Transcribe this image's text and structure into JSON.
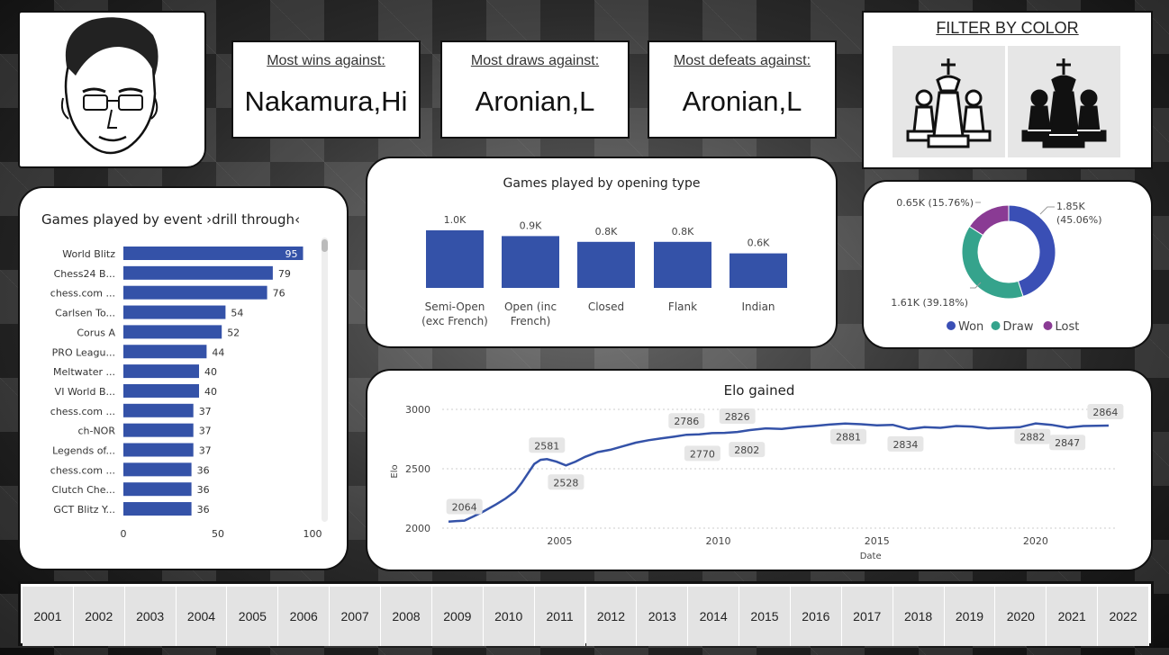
{
  "kpis": [
    {
      "label": "Most wins against:",
      "value": "Nakamura,Hi"
    },
    {
      "label": "Most draws against:",
      "value": "Aronian,L"
    },
    {
      "label": "Most defeats against:",
      "value": "Aronian,L"
    }
  ],
  "filter": {
    "title": "FILTER BY COLOR"
  },
  "event_chart": {
    "title": "Games played by event ›drill through‹"
  },
  "opening_chart": {
    "title": "Games played by opening type"
  },
  "elo_chart": {
    "title": "Elo gained"
  },
  "donut_legend": [
    {
      "label": "Won",
      "color": "#3a4fb5"
    },
    {
      "label": "Draw",
      "color": "#35a38c"
    },
    {
      "label": "Lost",
      "color": "#8a3b94"
    }
  ],
  "years": [
    "2001",
    "2002",
    "2003",
    "2004",
    "2005",
    "2006",
    "2007",
    "2008",
    "2009",
    "2010",
    "2011",
    "2012",
    "2013",
    "2014",
    "2015",
    "2016",
    "2017",
    "2018",
    "2019",
    "2020",
    "2021",
    "2022"
  ],
  "chart_data": [
    {
      "type": "bar",
      "orientation": "horizontal",
      "title": "Games played by event ›drill through‹",
      "categories": [
        "World Blitz",
        "Chess24 B...",
        "chess.com ...",
        "Carlsen To...",
        "Corus A",
        "PRO Leagu...",
        "Meltwater ...",
        "VI World B...",
        "chess.com ...",
        "ch-NOR",
        "Legends of...",
        "chess.com ...",
        "Clutch Che...",
        "GCT Blitz Y..."
      ],
      "values": [
        95,
        79,
        76,
        54,
        52,
        44,
        40,
        40,
        37,
        37,
        37,
        36,
        36,
        36
      ],
      "xlim": [
        0,
        100
      ],
      "xticks": [
        "0",
        "50",
        "100"
      ],
      "color": "#3452a8"
    },
    {
      "type": "bar",
      "title": "Games played by opening type",
      "categories": [
        [
          "Semi-Open",
          "(exc French)"
        ],
        [
          "Open (inc",
          "French)"
        ],
        [
          "Closed"
        ],
        [
          "Flank"
        ],
        [
          "Indian"
        ]
      ],
      "values": [
        1000,
        900,
        800,
        800,
        600
      ],
      "data_labels": [
        "1.0K",
        "0.9K",
        "0.8K",
        "0.8K",
        "0.6K"
      ],
      "color": "#3452a8"
    },
    {
      "type": "pie",
      "donut": true,
      "slices": [
        {
          "name": "Won",
          "value": 1850,
          "label": "1.85K (45.06%)",
          "color": "#3a4fb5"
        },
        {
          "name": "Draw",
          "value": 1610,
          "label": "1.61K (39.18%)",
          "color": "#35a38c"
        },
        {
          "name": "Lost",
          "value": 650,
          "label": "0.65K (15.76%)",
          "color": "#8a3b94"
        }
      ],
      "legend": "bottom"
    },
    {
      "type": "line",
      "title": "Elo gained",
      "xlabel": "Date",
      "ylabel": "Elo",
      "ylim": [
        2000,
        3000
      ],
      "yticks": [
        2000,
        2500,
        3000
      ],
      "xlim": [
        2001.3,
        2022.5
      ],
      "xticks": [
        2005,
        2010,
        2015,
        2020
      ],
      "series": [
        {
          "x": [
            2001.5,
            2002.0,
            2002.3,
            2002.6,
            2003.0,
            2003.3,
            2003.6,
            2003.8,
            2004.0,
            2004.2,
            2004.4,
            2004.6,
            2004.9,
            2005.2,
            2005.5,
            2005.8,
            2006.2,
            2006.6,
            2007.0,
            2007.4,
            2007.8,
            2008.2,
            2008.6,
            2009.0,
            2009.4,
            2009.8,
            2010.2,
            2010.6,
            2011.0,
            2011.5,
            2012.0,
            2012.5,
            2013.0,
            2013.5,
            2014.0,
            2014.5,
            2015.0,
            2015.5,
            2016.0,
            2016.5,
            2017.0,
            2017.5,
            2018.0,
            2018.5,
            2019.0,
            2019.5,
            2020.0,
            2020.5,
            2021.0,
            2021.5,
            2022.3
          ],
          "y": [
            2055,
            2064,
            2100,
            2140,
            2200,
            2250,
            2310,
            2380,
            2460,
            2540,
            2575,
            2581,
            2560,
            2528,
            2560,
            2600,
            2640,
            2660,
            2690,
            2720,
            2740,
            2755,
            2770,
            2786,
            2790,
            2800,
            2802,
            2810,
            2826,
            2840,
            2835,
            2850,
            2860,
            2872,
            2881,
            2875,
            2865,
            2870,
            2834,
            2850,
            2845,
            2860,
            2855,
            2840,
            2845,
            2850,
            2882,
            2870,
            2847,
            2860,
            2864
          ]
        }
      ],
      "data_labels": [
        {
          "x": 2002.0,
          "y": 2064,
          "label": "2064"
        },
        {
          "x": 2004.6,
          "y": 2581,
          "label": "2581"
        },
        {
          "x": 2005.2,
          "y": 2528,
          "label": "2528"
        },
        {
          "x": 2009.0,
          "y": 2786,
          "label": "2786"
        },
        {
          "x": 2009.5,
          "y": 2770,
          "label": "2770"
        },
        {
          "x": 2010.6,
          "y": 2826,
          "label": "2826"
        },
        {
          "x": 2010.9,
          "y": 2802,
          "label": "2802"
        },
        {
          "x": 2014.1,
          "y": 2881,
          "label": "2881"
        },
        {
          "x": 2015.9,
          "y": 2834,
          "label": "2834"
        },
        {
          "x": 2019.9,
          "y": 2882,
          "label": "2882"
        },
        {
          "x": 2021.0,
          "y": 2847,
          "label": "2847"
        },
        {
          "x": 2022.2,
          "y": 2864,
          "label": "2864"
        }
      ],
      "color": "#3452a8"
    }
  ]
}
